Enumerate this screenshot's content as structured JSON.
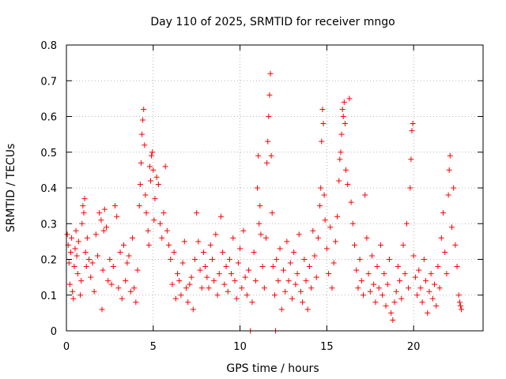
{
  "chart_data": {
    "type": "scatter",
    "title": "Day 110 of 2025, SRMTID for receiver mngo",
    "xlabel": "GPS time / hours",
    "ylabel": "SRMTID / TECUs",
    "xlim": [
      0,
      24
    ],
    "ylim": [
      0,
      0.8
    ],
    "xticks": [
      0,
      5,
      10,
      15,
      20
    ],
    "xtick_labels": [
      "0",
      "5",
      "10",
      "15",
      "20"
    ],
    "yticks": [
      0,
      0.1,
      0.2,
      0.3,
      0.4,
      0.5,
      0.6,
      0.7,
      0.8
    ],
    "ytick_labels": [
      "0",
      "0.1",
      "0.2",
      "0.3",
      "0.4",
      "0.5",
      "0.6",
      "0.7",
      "0.8"
    ],
    "grid": true,
    "marker": "+",
    "color": "#ff0000",
    "series": [
      {
        "name": "SRMTID",
        "points": [
          [
            0.05,
            0.27
          ],
          [
            0.1,
            0.24
          ],
          [
            0.15,
            0.19
          ],
          [
            0.2,
            0.13
          ],
          [
            0.25,
            0.22
          ],
          [
            0.3,
            0.26
          ],
          [
            0.35,
            0.11
          ],
          [
            0.4,
            0.09
          ],
          [
            0.45,
            0.18
          ],
          [
            0.5,
            0.23
          ],
          [
            0.55,
            0.28
          ],
          [
            0.6,
            0.21
          ],
          [
            0.65,
            0.16
          ],
          [
            0.7,
            0.25
          ],
          [
            0.8,
            0.1
          ],
          [
            0.85,
            0.14
          ],
          [
            0.9,
            0.3
          ],
          [
            0.95,
            0.35
          ],
          [
            1.0,
            0.33
          ],
          [
            1.05,
            0.37
          ],
          [
            1.1,
            0.22
          ],
          [
            1.15,
            0.18
          ],
          [
            1.2,
            0.26
          ],
          [
            1.3,
            0.2
          ],
          [
            1.4,
            0.15
          ],
          [
            1.5,
            0.19
          ],
          [
            1.6,
            0.11
          ],
          [
            1.7,
            0.27
          ],
          [
            1.8,
            0.21
          ],
          [
            1.9,
            0.33
          ],
          [
            2.0,
            0.31
          ],
          [
            2.05,
            0.06
          ],
          [
            2.1,
            0.17
          ],
          [
            2.15,
            0.28
          ],
          [
            2.2,
            0.34
          ],
          [
            2.3,
            0.29
          ],
          [
            2.4,
            0.14
          ],
          [
            2.5,
            0.2
          ],
          [
            2.6,
            0.13
          ],
          [
            2.7,
            0.18
          ],
          [
            2.8,
            0.35
          ],
          [
            2.9,
            0.32
          ],
          [
            3.0,
            0.12
          ],
          [
            3.1,
            0.22
          ],
          [
            3.2,
            0.09
          ],
          [
            3.3,
            0.24
          ],
          [
            3.4,
            0.14
          ],
          [
            3.5,
            0.19
          ],
          [
            3.6,
            0.21
          ],
          [
            3.7,
            0.11
          ],
          [
            3.8,
            0.26
          ],
          [
            3.9,
            0.12
          ],
          [
            4.0,
            0.08
          ],
          [
            4.1,
            0.17
          ],
          [
            4.2,
            0.35
          ],
          [
            4.25,
            0.41
          ],
          [
            4.3,
            0.47
          ],
          [
            4.35,
            0.55
          ],
          [
            4.4,
            0.59
          ],
          [
            4.45,
            0.62
          ],
          [
            4.5,
            0.52
          ],
          [
            4.55,
            0.38
          ],
          [
            4.6,
            0.33
          ],
          [
            4.7,
            0.28
          ],
          [
            4.75,
            0.24
          ],
          [
            4.8,
            0.46
          ],
          [
            4.85,
            0.42
          ],
          [
            4.9,
            0.49
          ],
          [
            4.95,
            0.5
          ],
          [
            5.0,
            0.45
          ],
          [
            5.05,
            0.31
          ],
          [
            5.1,
            0.37
          ],
          [
            5.2,
            0.43
          ],
          [
            5.3,
            0.41
          ],
          [
            5.4,
            0.3
          ],
          [
            5.5,
            0.26
          ],
          [
            5.6,
            0.33
          ],
          [
            5.7,
            0.46
          ],
          [
            5.8,
            0.28
          ],
          [
            5.9,
            0.24
          ],
          [
            6.0,
            0.2
          ],
          [
            6.1,
            0.13
          ],
          [
            6.2,
            0.22
          ],
          [
            6.3,
            0.09
          ],
          [
            6.4,
            0.16
          ],
          [
            6.5,
            0.14
          ],
          [
            6.6,
            0.1
          ],
          [
            6.7,
            0.19
          ],
          [
            6.8,
            0.25
          ],
          [
            6.9,
            0.12
          ],
          [
            7.0,
            0.08
          ],
          [
            7.1,
            0.13
          ],
          [
            7.2,
            0.15
          ],
          [
            7.3,
            0.06
          ],
          [
            7.4,
            0.2
          ],
          [
            7.5,
            0.33
          ],
          [
            7.6,
            0.25
          ],
          [
            7.7,
            0.17
          ],
          [
            7.8,
            0.12
          ],
          [
            7.9,
            0.22
          ],
          [
            8.0,
            0.18
          ],
          [
            8.1,
            0.15
          ],
          [
            8.2,
            0.12
          ],
          [
            8.3,
            0.24
          ],
          [
            8.4,
            0.2
          ],
          [
            8.5,
            0.14
          ],
          [
            8.6,
            0.27
          ],
          [
            8.7,
            0.1
          ],
          [
            8.8,
            0.16
          ],
          [
            8.9,
            0.32
          ],
          [
            9.0,
            0.22
          ],
          [
            9.1,
            0.13
          ],
          [
            9.2,
            0.18
          ],
          [
            9.3,
            0.11
          ],
          [
            9.4,
            0.2
          ],
          [
            9.5,
            0.16
          ],
          [
            9.6,
            0.26
          ],
          [
            9.7,
            0.14
          ],
          [
            9.8,
            0.09
          ],
          [
            9.9,
            0.19
          ],
          [
            10.0,
            0.23
          ],
          [
            10.1,
            0.12
          ],
          [
            10.2,
            0.28
          ],
          [
            10.3,
            0.15
          ],
          [
            10.4,
            0.1
          ],
          [
            10.5,
            0.17
          ],
          [
            10.6,
            0.0
          ],
          [
            10.7,
            0.08
          ],
          [
            10.8,
            0.22
          ],
          [
            10.9,
            0.14
          ],
          [
            11.0,
            0.4
          ],
          [
            11.05,
            0.49
          ],
          [
            11.1,
            0.3
          ],
          [
            11.15,
            0.35
          ],
          [
            11.2,
            0.27
          ],
          [
            11.3,
            0.18
          ],
          [
            11.4,
            0.12
          ],
          [
            11.5,
            0.26
          ],
          [
            11.55,
            0.47
          ],
          [
            11.6,
            0.53
          ],
          [
            11.65,
            0.6
          ],
          [
            11.7,
            0.66
          ],
          [
            11.75,
            0.72
          ],
          [
            11.8,
            0.49
          ],
          [
            11.85,
            0.33
          ],
          [
            11.9,
            0.18
          ],
          [
            12.0,
            0.1
          ],
          [
            12.05,
            0.0
          ],
          [
            12.1,
            0.2
          ],
          [
            12.2,
            0.14
          ],
          [
            12.3,
            0.23
          ],
          [
            12.4,
            0.06
          ],
          [
            12.5,
            0.17
          ],
          [
            12.6,
            0.11
          ],
          [
            12.7,
            0.25
          ],
          [
            12.8,
            0.14
          ],
          [
            12.9,
            0.19
          ],
          [
            13.0,
            0.09
          ],
          [
            13.1,
            0.22
          ],
          [
            13.2,
            0.13
          ],
          [
            13.3,
            0.16
          ],
          [
            13.4,
            0.27
          ],
          [
            13.5,
            0.11
          ],
          [
            13.6,
            0.08
          ],
          [
            13.7,
            0.2
          ],
          [
            13.8,
            0.14
          ],
          [
            13.9,
            0.06
          ],
          [
            14.0,
            0.18
          ],
          [
            14.1,
            0.12
          ],
          [
            14.2,
            0.28
          ],
          [
            14.3,
            0.21
          ],
          [
            14.4,
            0.15
          ],
          [
            14.5,
            0.26
          ],
          [
            14.6,
            0.35
          ],
          [
            14.65,
            0.4
          ],
          [
            14.7,
            0.53
          ],
          [
            14.75,
            0.62
          ],
          [
            14.8,
            0.58
          ],
          [
            14.85,
            0.38
          ],
          [
            14.9,
            0.31
          ],
          [
            15.0,
            0.23
          ],
          [
            15.1,
            0.16
          ],
          [
            15.2,
            0.29
          ],
          [
            15.3,
            0.12
          ],
          [
            15.4,
            0.19
          ],
          [
            15.5,
            0.25
          ],
          [
            15.6,
            0.32
          ],
          [
            15.7,
            0.42
          ],
          [
            15.75,
            0.48
          ],
          [
            15.8,
            0.5
          ],
          [
            15.85,
            0.55
          ],
          [
            15.9,
            0.62
          ],
          [
            15.95,
            0.6
          ],
          [
            16.0,
            0.64
          ],
          [
            16.05,
            0.58
          ],
          [
            16.1,
            0.45
          ],
          [
            16.2,
            0.41
          ],
          [
            16.3,
            0.65
          ],
          [
            16.4,
            0.36
          ],
          [
            16.5,
            0.3
          ],
          [
            16.6,
            0.24
          ],
          [
            16.7,
            0.17
          ],
          [
            16.8,
            0.12
          ],
          [
            16.9,
            0.2
          ],
          [
            17.0,
            0.14
          ],
          [
            17.1,
            0.1
          ],
          [
            17.2,
            0.38
          ],
          [
            17.3,
            0.26
          ],
          [
            17.4,
            0.16
          ],
          [
            17.5,
            0.11
          ],
          [
            17.6,
            0.21
          ],
          [
            17.7,
            0.13
          ],
          [
            17.8,
            0.08
          ],
          [
            17.9,
            0.18
          ],
          [
            18.0,
            0.12
          ],
          [
            18.1,
            0.24
          ],
          [
            18.2,
            0.1
          ],
          [
            18.3,
            0.16
          ],
          [
            18.4,
            0.07
          ],
          [
            18.5,
            0.13
          ],
          [
            18.6,
            0.2
          ],
          [
            18.7,
            0.05
          ],
          [
            18.8,
            0.03
          ],
          [
            18.9,
            0.08
          ],
          [
            19.0,
            0.11
          ],
          [
            19.1,
            0.18
          ],
          [
            19.2,
            0.14
          ],
          [
            19.3,
            0.09
          ],
          [
            19.4,
            0.24
          ],
          [
            19.5,
            0.16
          ],
          [
            19.6,
            0.3
          ],
          [
            19.7,
            0.12
          ],
          [
            19.8,
            0.4
          ],
          [
            19.85,
            0.48
          ],
          [
            19.9,
            0.56
          ],
          [
            19.95,
            0.58
          ],
          [
            20.0,
            0.21
          ],
          [
            20.1,
            0.15
          ],
          [
            20.2,
            0.1
          ],
          [
            20.3,
            0.17
          ],
          [
            20.4,
            0.12
          ],
          [
            20.5,
            0.08
          ],
          [
            20.6,
            0.2
          ],
          [
            20.7,
            0.14
          ],
          [
            20.8,
            0.05
          ],
          [
            20.9,
            0.11
          ],
          [
            21.0,
            0.16
          ],
          [
            21.1,
            0.09
          ],
          [
            21.2,
            0.13
          ],
          [
            21.3,
            0.07
          ],
          [
            21.4,
            0.18
          ],
          [
            21.5,
            0.12
          ],
          [
            21.6,
            0.26
          ],
          [
            21.7,
            0.33
          ],
          [
            21.8,
            0.22
          ],
          [
            21.9,
            0.16
          ],
          [
            22.0,
            0.38
          ],
          [
            22.05,
            0.45
          ],
          [
            22.1,
            0.49
          ],
          [
            22.2,
            0.29
          ],
          [
            22.3,
            0.4
          ],
          [
            22.4,
            0.24
          ],
          [
            22.5,
            0.18
          ],
          [
            22.6,
            0.1
          ],
          [
            22.65,
            0.08
          ],
          [
            22.7,
            0.07
          ],
          [
            22.75,
            0.06
          ]
        ]
      }
    ]
  }
}
